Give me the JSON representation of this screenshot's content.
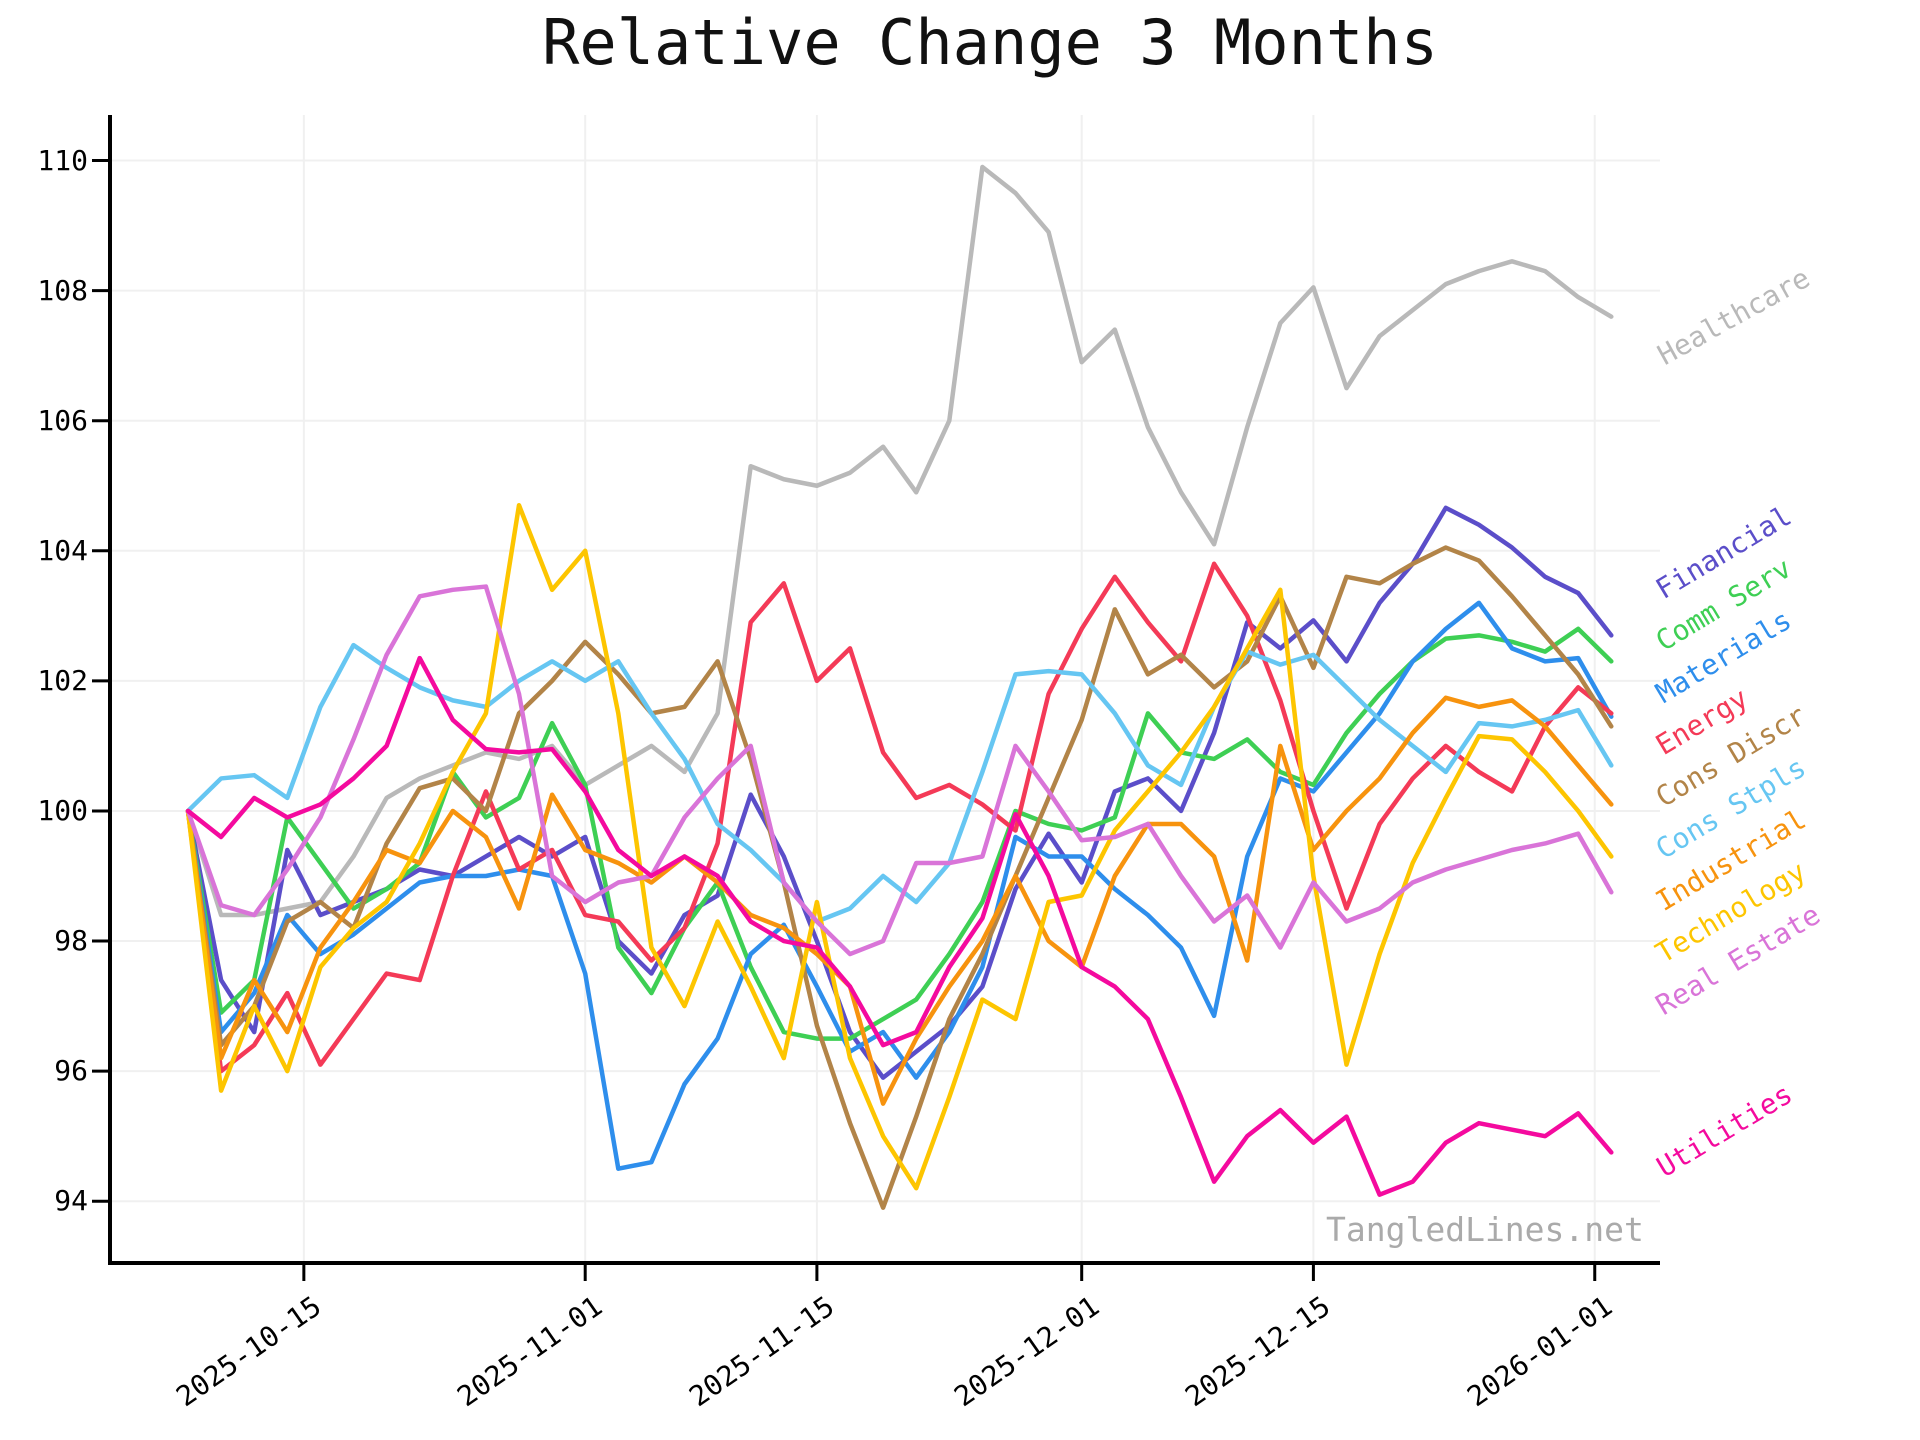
{
  "chart_data": {
    "type": "line",
    "title": "Relative Change 3 Months",
    "watermark": "TangledLines.net",
    "grid": true,
    "legend_position": "right-of-plot, rotated labels",
    "ylim": [
      93.05,
      110.7
    ],
    "y_ticks": [
      94,
      96,
      98,
      100,
      102,
      104,
      106,
      108,
      110
    ],
    "y_tick_labels": [
      "94",
      "96",
      "98",
      "100",
      "102",
      "104",
      "106",
      "108",
      "110"
    ],
    "x_tick_days": [
      7,
      24,
      38,
      54,
      68,
      85
    ],
    "x_tick_labels": [
      "2025-10-15",
      "2025-11-01",
      "2025-11-15",
      "2025-12-01",
      "2025-12-15",
      "2026-01-01"
    ],
    "x_days": [
      0,
      2,
      4,
      6,
      8,
      10,
      12,
      14,
      16,
      18,
      20,
      22,
      24,
      26,
      28,
      30,
      32,
      34,
      36,
      38,
      40,
      42,
      44,
      46,
      48,
      50,
      52,
      54,
      56,
      58,
      60,
      62,
      64,
      66,
      68,
      70,
      72,
      74,
      76,
      78,
      80,
      82,
      84,
      86
    ],
    "x_dates": [
      "2025-10-08",
      "2025-10-10",
      "2025-10-12",
      "2025-10-14",
      "2025-10-16",
      "2025-10-18",
      "2025-10-20",
      "2025-10-22",
      "2025-10-24",
      "2025-10-26",
      "2025-10-28",
      "2025-10-30",
      "2025-11-01",
      "2025-11-03",
      "2025-11-05",
      "2025-11-07",
      "2025-11-09",
      "2025-11-11",
      "2025-11-13",
      "2025-11-15",
      "2025-11-17",
      "2025-11-19",
      "2025-11-21",
      "2025-11-23",
      "2025-11-25",
      "2025-11-27",
      "2025-11-29",
      "2025-12-01",
      "2025-12-03",
      "2025-12-05",
      "2025-12-07",
      "2025-12-09",
      "2025-12-11",
      "2025-12-13",
      "2025-12-15",
      "2025-12-17",
      "2025-12-19",
      "2025-12-21",
      "2025-12-23",
      "2025-12-25",
      "2025-12-27",
      "2025-12-29",
      "2025-12-31",
      "2026-01-02"
    ],
    "series": [
      {
        "name": "Healthcare",
        "color": "#b9b9b9",
        "values": [
          100,
          98.4,
          98.4,
          98.5,
          98.6,
          99.3,
          100.2,
          100.5,
          100.7,
          100.9,
          100.8,
          101.0,
          100.4,
          100.7,
          101.0,
          100.6,
          101.5,
          105.3,
          105.1,
          105.0,
          105.2,
          105.6,
          104.9,
          106.0,
          109.9,
          109.5,
          108.9,
          106.9,
          107.4,
          105.9,
          104.9,
          104.1,
          105.9,
          107.5,
          108.05,
          106.5,
          107.3,
          107.7,
          108.1,
          108.3,
          108.45,
          108.3,
          107.9,
          107.6
        ]
      },
      {
        "name": "Financial",
        "color": "#5b4ec9",
        "values": [
          100,
          97.4,
          96.6,
          99.4,
          98.4,
          98.6,
          98.8,
          99.1,
          99.0,
          99.3,
          99.6,
          99.3,
          99.6,
          98.0,
          97.5,
          98.4,
          98.7,
          100.25,
          99.3,
          98.0,
          96.6,
          95.9,
          96.3,
          96.7,
          97.3,
          98.8,
          99.65,
          98.9,
          100.3,
          100.5,
          100.0,
          101.2,
          102.9,
          102.5,
          102.93,
          102.3,
          103.2,
          103.8,
          104.66,
          104.4,
          104.05,
          103.6,
          103.35,
          102.7
        ]
      },
      {
        "name": "Comm Serv",
        "color": "#3ecf54",
        "values": [
          100,
          96.9,
          97.4,
          99.9,
          99.2,
          98.5,
          98.8,
          99.2,
          100.6,
          99.9,
          100.2,
          101.35,
          100.4,
          97.9,
          97.2,
          98.2,
          98.9,
          97.6,
          96.6,
          96.5,
          96.5,
          96.8,
          97.1,
          97.8,
          98.6,
          100.0,
          99.8,
          99.7,
          99.9,
          101.5,
          100.9,
          100.8,
          101.1,
          100.6,
          100.4,
          101.2,
          101.8,
          102.3,
          102.65,
          102.7,
          102.6,
          102.45,
          102.8,
          102.3
        ]
      },
      {
        "name": "Materials",
        "color": "#2e8eec",
        "values": [
          100,
          96.6,
          97.2,
          98.4,
          97.8,
          98.1,
          98.5,
          98.9,
          99.0,
          99.0,
          99.1,
          99.0,
          97.5,
          94.5,
          94.6,
          95.8,
          96.5,
          97.8,
          98.25,
          97.3,
          96.3,
          96.6,
          95.9,
          96.6,
          97.6,
          99.6,
          99.3,
          99.3,
          98.8,
          98.4,
          97.9,
          96.85,
          99.3,
          100.5,
          100.3,
          100.9,
          101.5,
          102.3,
          102.8,
          103.2,
          102.5,
          102.3,
          102.35,
          101.45
        ]
      },
      {
        "name": "Energy",
        "color": "#f43a57",
        "values": [
          100,
          96.0,
          96.4,
          97.2,
          96.1,
          96.8,
          97.5,
          97.4,
          99.0,
          100.3,
          99.1,
          99.4,
          98.4,
          98.3,
          97.7,
          98.2,
          99.5,
          102.9,
          103.5,
          102.0,
          102.5,
          100.9,
          100.2,
          100.4,
          100.1,
          99.7,
          101.8,
          102.8,
          103.6,
          102.9,
          102.3,
          103.8,
          103.0,
          101.7,
          100.0,
          98.5,
          99.8,
          100.5,
          101.0,
          100.6,
          100.3,
          101.3,
          101.9,
          101.5
        ]
      },
      {
        "name": "Cons Discr",
        "color": "#b28448",
        "values": [
          100,
          96.4,
          97.0,
          98.3,
          98.6,
          98.2,
          99.5,
          100.35,
          100.5,
          100.0,
          101.5,
          102.0,
          102.6,
          102.1,
          101.5,
          101.6,
          102.3,
          100.8,
          98.9,
          96.7,
          95.2,
          93.9,
          95.3,
          96.8,
          97.8,
          99.0,
          100.2,
          101.4,
          103.1,
          102.1,
          102.4,
          101.9,
          102.3,
          103.3,
          102.2,
          103.6,
          103.5,
          103.8,
          104.05,
          103.85,
          103.3,
          102.7,
          102.1,
          101.3
        ]
      },
      {
        "name": "Cons Stpls",
        "color": "#66c6f2",
        "values": [
          100,
          100.5,
          100.55,
          100.2,
          101.6,
          102.55,
          102.2,
          101.9,
          101.7,
          101.6,
          102.0,
          102.3,
          102.0,
          102.3,
          101.5,
          100.8,
          99.8,
          99.4,
          98.9,
          98.3,
          98.5,
          99.0,
          98.6,
          99.2,
          100.6,
          102.1,
          102.15,
          102.1,
          101.5,
          100.7,
          100.4,
          101.6,
          102.45,
          102.25,
          102.4,
          101.9,
          101.4,
          101.0,
          100.6,
          101.35,
          101.3,
          101.4,
          101.55,
          100.7
        ]
      },
      {
        "name": "Industrial",
        "color": "#f7930e",
        "values": [
          100,
          96.2,
          97.4,
          96.6,
          97.9,
          98.6,
          99.4,
          99.2,
          100.0,
          99.6,
          98.5,
          100.25,
          99.4,
          99.2,
          98.9,
          99.3,
          98.9,
          98.4,
          98.2,
          97.8,
          97.3,
          95.5,
          96.5,
          97.3,
          98.0,
          99.0,
          98.0,
          97.6,
          99.0,
          99.8,
          99.8,
          99.3,
          97.7,
          101.0,
          99.4,
          100.0,
          100.5,
          101.2,
          101.74,
          101.6,
          101.7,
          101.3,
          100.7,
          100.1
        ]
      },
      {
        "name": "Technology",
        "color": "#fdc500",
        "values": [
          100,
          95.7,
          97.0,
          96.0,
          97.6,
          98.2,
          98.6,
          99.5,
          100.6,
          101.5,
          104.7,
          103.4,
          104.0,
          101.5,
          97.9,
          97.0,
          98.3,
          97.3,
          96.2,
          98.6,
          96.2,
          95.0,
          94.2,
          95.6,
          97.1,
          96.8,
          98.6,
          98.7,
          99.7,
          100.3,
          100.9,
          101.6,
          102.5,
          103.4,
          99.0,
          96.1,
          97.8,
          99.2,
          100.2,
          101.15,
          101.1,
          100.6,
          100.0,
          99.3
        ]
      },
      {
        "name": "Real Estate",
        "color": "#d974d8",
        "values": [
          100,
          98.55,
          98.4,
          99.1,
          99.9,
          101.1,
          102.4,
          103.3,
          103.4,
          103.45,
          101.8,
          99.0,
          98.6,
          98.9,
          99.0,
          99.9,
          100.5,
          101.0,
          98.9,
          98.3,
          97.8,
          98.0,
          99.2,
          99.2,
          99.3,
          101.0,
          100.3,
          99.55,
          99.6,
          99.8,
          99.0,
          98.3,
          98.7,
          97.9,
          98.9,
          98.3,
          98.5,
          98.9,
          99.1,
          99.25,
          99.4,
          99.5,
          99.65,
          98.75
        ]
      },
      {
        "name": "Utilities",
        "color": "#f40a9e",
        "values": [
          100,
          99.6,
          100.2,
          99.9,
          100.1,
          100.5,
          101.0,
          102.35,
          101.4,
          100.95,
          100.9,
          100.95,
          100.3,
          99.4,
          99.0,
          99.3,
          99.0,
          98.3,
          98.0,
          97.9,
          97.3,
          96.4,
          96.6,
          97.6,
          98.35,
          99.95,
          99.0,
          97.6,
          97.3,
          96.8,
          95.6,
          94.3,
          95.0,
          95.4,
          94.9,
          95.3,
          94.1,
          94.3,
          94.9,
          95.2,
          95.1,
          95.0,
          95.35,
          94.75
        ]
      }
    ],
    "colors": {
      "axis": "#000000",
      "grid": "#f0f0f0",
      "watermark": "#aaaaaa",
      "title": "#111111"
    }
  }
}
